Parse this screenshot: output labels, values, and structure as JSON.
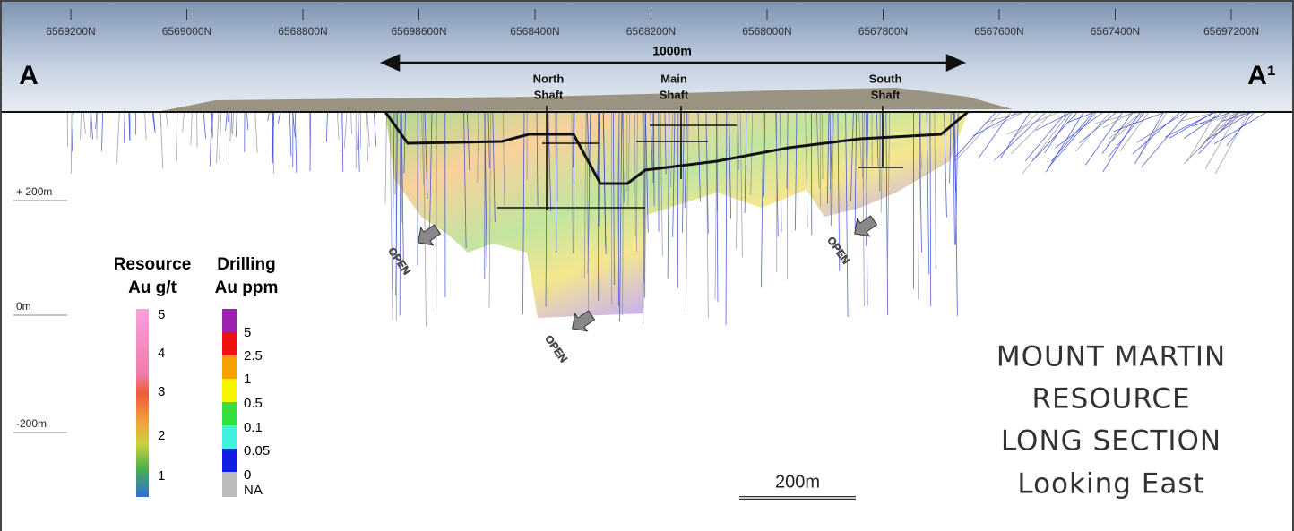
{
  "header": {
    "northings": [
      "6569200N",
      "6569000N",
      "6568800N",
      "65698600N",
      "6568400N",
      "6568200N",
      "6568000N",
      "6567800N",
      "6567600N",
      "6567400N",
      "65697200N"
    ],
    "section_start": "A",
    "section_end": "A¹",
    "width_label": "1000m"
  },
  "shafts": [
    {
      "line1": "North",
      "line2": "Shaft"
    },
    {
      "line1": "Main",
      "line2": "Shaft"
    },
    {
      "line1": "South",
      "line2": "Shaft"
    }
  ],
  "elevations": [
    "+ 200m",
    "0m",
    "-200m"
  ],
  "open_labels": [
    "OPEN",
    "OPEN",
    "OPEN"
  ],
  "legend_resource": {
    "title1": "Resource",
    "title2": "Au g/t",
    "ticks": [
      5,
      4,
      3,
      2,
      1
    ]
  },
  "legend_drilling": {
    "title1": "Drilling",
    "title2": "Au ppm",
    "ticks": [
      5,
      2.5,
      1,
      0.5,
      0.1,
      0.05,
      0,
      "NA"
    ]
  },
  "scale_bar": "200m",
  "title": [
    "MOUNT MARTIN",
    "RESOURCE",
    "LONG SECTION",
    "Looking East"
  ]
}
